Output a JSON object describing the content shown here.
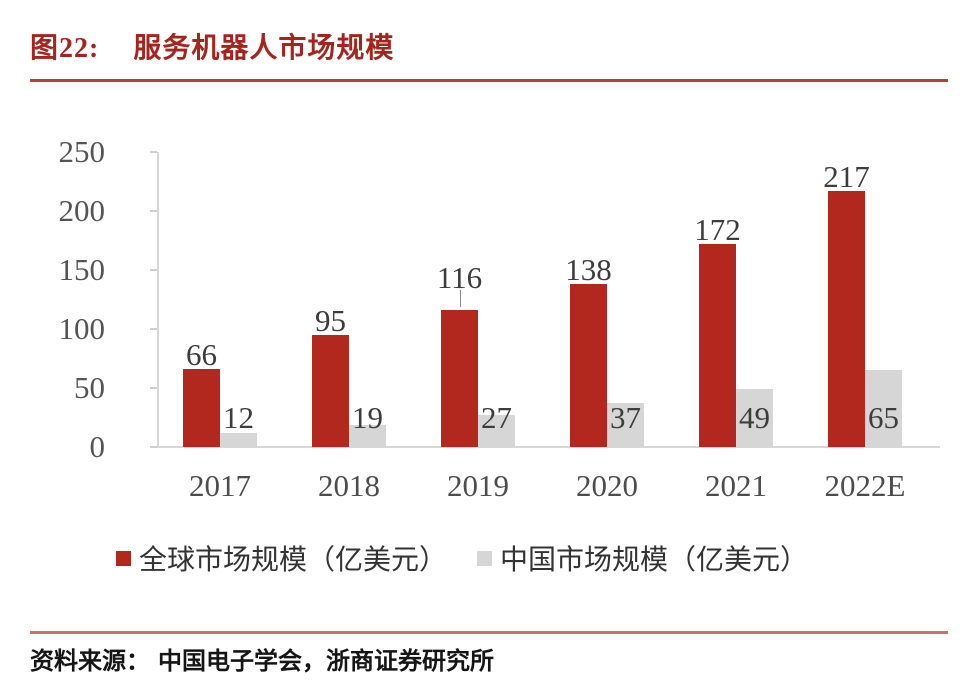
{
  "figure": {
    "title_prefix": "图22:",
    "title_text": "服务机器人市场规模",
    "title_color": "#a6241e",
    "source_label": "资料来源：",
    "source_text": "中国电子学会，浙商证券研究所"
  },
  "chart_data": {
    "type": "bar",
    "categories": [
      "2017",
      "2018",
      "2019",
      "2020",
      "2021",
      "2022E"
    ],
    "series": [
      {
        "name": "全球市场规模（亿美元）",
        "color": "#b2281e",
        "values": [
          66,
          95,
          116,
          138,
          172,
          217
        ]
      },
      {
        "name": "中国市场规模（亿美元）",
        "color": "#d6d6d6",
        "values": [
          12,
          19,
          27,
          37,
          49,
          65
        ]
      }
    ],
    "title": "服务机器人市场规模",
    "xlabel": "",
    "ylabel": "",
    "ylim": [
      0,
      250
    ],
    "yticks": [
      0,
      50,
      100,
      150,
      200,
      250
    ],
    "grid": false,
    "legend_position": "bottom",
    "value_labels": true,
    "annotations": [
      {
        "type": "leader-line",
        "category": "2019",
        "series_index": 0
      }
    ]
  }
}
